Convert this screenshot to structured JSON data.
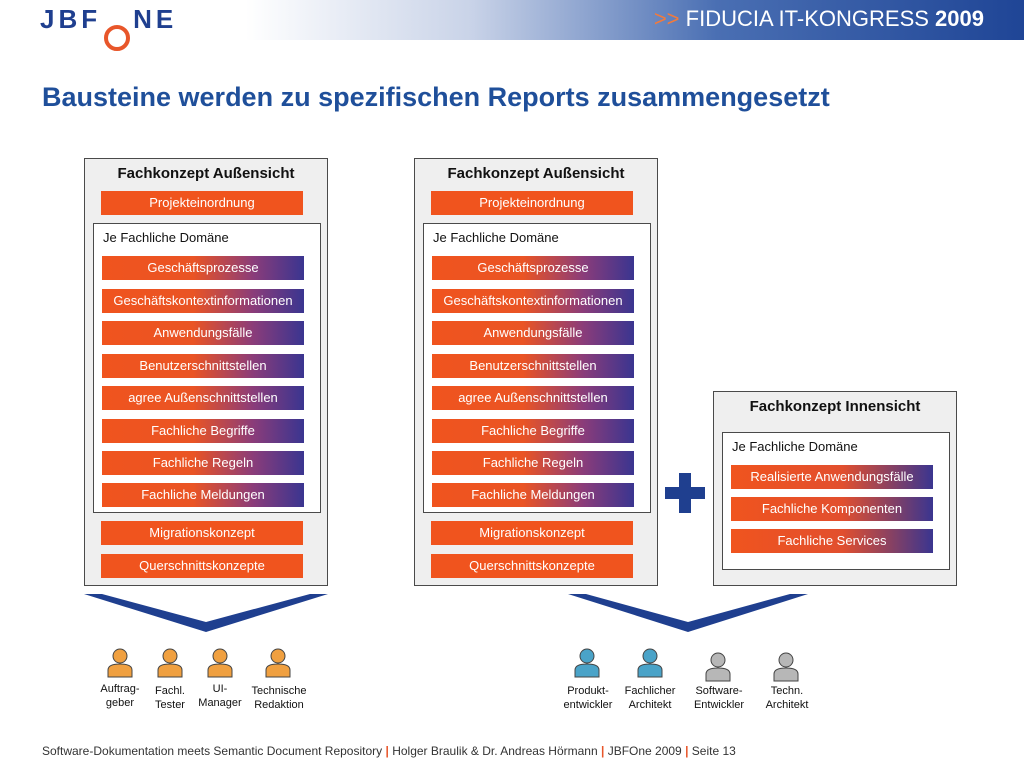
{
  "header": {
    "logo": "JBFONE",
    "arrows": ">>",
    "event": "FIDUCIA IT-KONGRESS",
    "year": "2009"
  },
  "title": "Bausteine werden zu spezifischen Reports zusammengesetzt",
  "panels": [
    {
      "title": "Fachkonzept Außensicht",
      "top_item": "Projekteinordnung",
      "domain_label": "Je Fachliche Domäne",
      "domain_items": [
        "Geschäftsprozesse",
        "Geschäftskontextinformationen",
        "Anwendungsfälle",
        "Benutzerschnittstellen",
        "agree Außenschnittstellen",
        "Fachliche Begriffe",
        "Fachliche Regeln",
        "Fachliche Meldungen"
      ],
      "bottom_items": [
        "Migrationskonzept",
        "Querschnittskonzepte"
      ]
    },
    {
      "title": "Fachkonzept Außensicht",
      "top_item": "Projekteinordnung",
      "domain_label": "Je Fachliche Domäne",
      "domain_items": [
        "Geschäftsprozesse",
        "Geschäftskontextinformationen",
        "Anwendungsfälle",
        "Benutzerschnittstellen",
        "agree Außenschnittstellen",
        "Fachliche Begriffe",
        "Fachliche Regeln",
        "Fachliche Meldungen"
      ],
      "bottom_items": [
        "Migrationskonzept",
        "Querschnittskonzepte"
      ]
    },
    {
      "title": "Fachkonzept Innensicht",
      "domain_label": "Je Fachliche Domäne",
      "domain_items": [
        "Realisierte Anwendungsfälle",
        "Fachliche Komponenten",
        "Fachliche Services"
      ]
    }
  ],
  "roles_left": [
    {
      "label": "Auftrag-\ngeber",
      "color": "#f0a040"
    },
    {
      "label": "Fachl.\nTester",
      "color": "#f0a040"
    },
    {
      "label": "UI-\nManager",
      "color": "#f0a040"
    },
    {
      "label": "Technische\nRedaktion",
      "color": "#f0a040"
    }
  ],
  "roles_right": [
    {
      "label": "Produkt-\nentwickler",
      "color": "#4aa3c8"
    },
    {
      "label": "Fachlicher\nArchitekt",
      "color": "#4aa3c8"
    },
    {
      "label": "Software-\nEntwickler",
      "color": "#b7b7b7"
    },
    {
      "label": "Techn.\nArchitekt",
      "color": "#b7b7b7"
    }
  ],
  "footer": {
    "part1": "Software-Dokumentation meets Semantic Document Repository",
    "part2": "Holger Braulik & Dr. Andreas Hörmann",
    "part3": "JBFOne 2009",
    "part4": "Seite 13",
    "separator": "|"
  },
  "colors": {
    "brand_blue": "#1f4f9a",
    "orange": "#f0541e",
    "dark_blue": "#1f3f8f"
  }
}
